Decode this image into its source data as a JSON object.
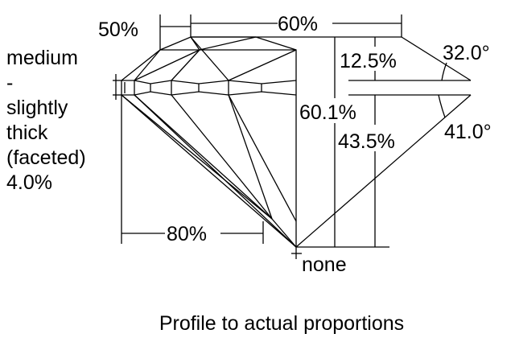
{
  "girdle_label": {
    "lines": [
      "medium",
      "-",
      "slightly",
      "thick",
      "(faceted)",
      "4.0%"
    ]
  },
  "dimensions": {
    "star_length": "50%",
    "table": "60%",
    "crown_height": "12.5%",
    "crown_angle": "32.0°",
    "total_depth": "60.1%",
    "pavilion_depth": "43.5%",
    "pavilion_angle": "41.0°",
    "lower_half_length": "80%",
    "culet": "none"
  },
  "caption": "Profile to actual proportions",
  "colors": {
    "line": "#000000",
    "background": "#ffffff"
  }
}
